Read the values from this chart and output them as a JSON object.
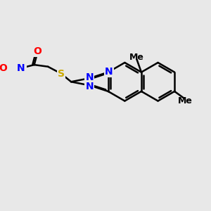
{
  "bg_color": "#e8e8e8",
  "bond_color": "#000000",
  "bond_width": 1.8,
  "atom_colors": {
    "N": "#0000ff",
    "O": "#ff0000",
    "S": "#ccaa00",
    "C": "#000000"
  },
  "font_size_atom": 10,
  "font_size_methyl": 9,
  "figsize": [
    3.0,
    3.0
  ],
  "dpi": 100
}
